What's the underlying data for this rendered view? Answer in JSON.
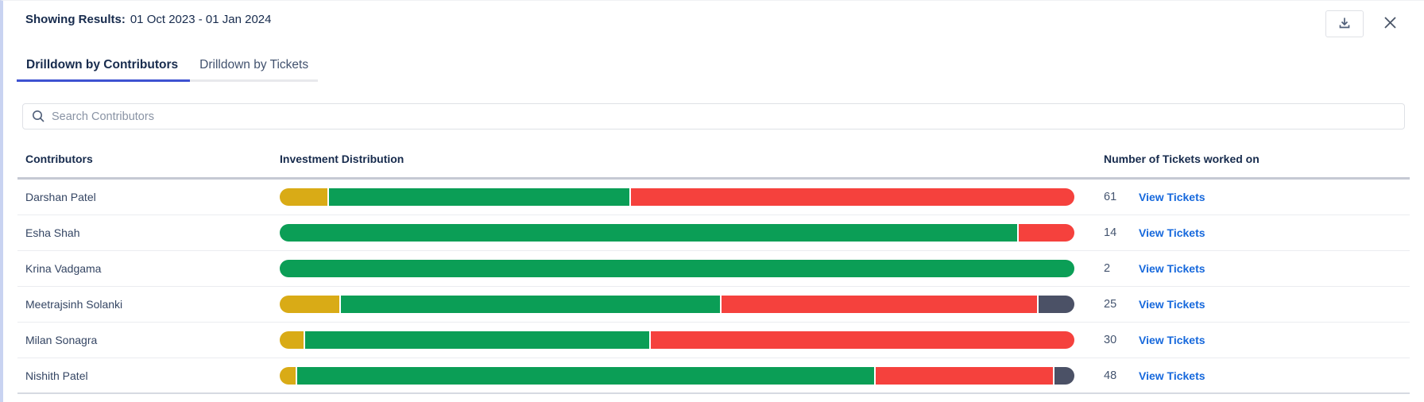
{
  "header": {
    "label": "Showing Results:",
    "value": "01 Oct 2023 - 01 Jan 2024"
  },
  "top_actions": {
    "download_icon": "download-icon",
    "close_icon": "close-icon"
  },
  "tabs": [
    {
      "label": "Drilldown by Contributors",
      "active": true
    },
    {
      "label": "Drilldown by Tickets",
      "active": false
    }
  ],
  "search": {
    "placeholder": "Search Contributors",
    "icon": "search-icon"
  },
  "table": {
    "columns": [
      "Contributors",
      "Investment Distribution",
      "Number of Tickets worked on"
    ],
    "rows": [
      {
        "name": "Darshan Patel",
        "tickets": "61",
        "link": "View Tickets",
        "segments": [
          {
            "color": "gold",
            "pct": 6
          },
          {
            "color": "green",
            "pct": 38
          },
          {
            "color": "red",
            "pct": 56
          }
        ]
      },
      {
        "name": "Esha Shah",
        "tickets": "14",
        "link": "View Tickets",
        "segments": [
          {
            "color": "green",
            "pct": 93
          },
          {
            "color": "red",
            "pct": 7
          }
        ]
      },
      {
        "name": "Krina Vadgama",
        "tickets": "2",
        "link": "View Tickets",
        "segments": [
          {
            "color": "green",
            "pct": 100
          }
        ]
      },
      {
        "name": "Meetrajsinh Solanki",
        "tickets": "25",
        "link": "View Tickets",
        "segments": [
          {
            "color": "gold",
            "pct": 7.5
          },
          {
            "color": "green",
            "pct": 48
          },
          {
            "color": "red",
            "pct": 40
          },
          {
            "color": "slate",
            "pct": 4.5
          }
        ]
      },
      {
        "name": "Milan Sonagra",
        "tickets": "30",
        "link": "View Tickets",
        "segments": [
          {
            "color": "gold",
            "pct": 3
          },
          {
            "color": "green",
            "pct": 43.5
          },
          {
            "color": "red",
            "pct": 53.5
          }
        ]
      },
      {
        "name": "Nishith Patel",
        "tickets": "48",
        "link": "View Tickets",
        "segments": [
          {
            "color": "gold",
            "pct": 2
          },
          {
            "color": "green",
            "pct": 73
          },
          {
            "color": "red",
            "pct": 22.5
          },
          {
            "color": "slate",
            "pct": 2.5
          }
        ]
      }
    ]
  },
  "colors": {
    "gold": "#d9ab16",
    "green": "#0b9e56",
    "red": "#f5413d",
    "slate": "#4b5166",
    "accent_tab": "#3e52d1",
    "link": "#1668dc"
  }
}
